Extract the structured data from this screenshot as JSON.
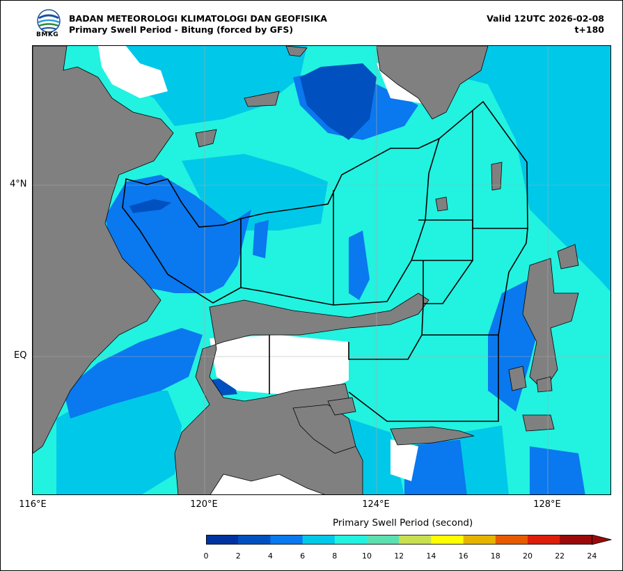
{
  "header": {
    "agency": "BADAN METEOROLOGI KLIMATOLOGI DAN GEOFISIKA",
    "product": "Primary Swell Period - Bitung (forced by GFS)",
    "valid": "Valid 12UTC 2026-02-08",
    "lead": "t+180",
    "logo_text": "BMKG"
  },
  "map": {
    "lat_labels": [
      "4°N",
      "EQ"
    ],
    "lon_labels": [
      "116°E",
      "120°E",
      "124°E",
      "128°E"
    ],
    "land_color": "#808080",
    "no_data_color": "#ffffff"
  },
  "colorbar": {
    "title": "Primary Swell Period (second)",
    "ticks": [
      "0",
      "2",
      "4",
      "6",
      "8",
      "10",
      "12",
      "14",
      "16",
      "18",
      "20",
      "22",
      "24"
    ],
    "colors": [
      "#0033a0",
      "#0050c0",
      "#0a78ee",
      "#00c8e8",
      "#22f2e0",
      "#5de0b0",
      "#c8e050",
      "#ffff00",
      "#e6b400",
      "#e85a00",
      "#dc1e0a",
      "#9a0a0a"
    ],
    "extend": "max"
  }
}
